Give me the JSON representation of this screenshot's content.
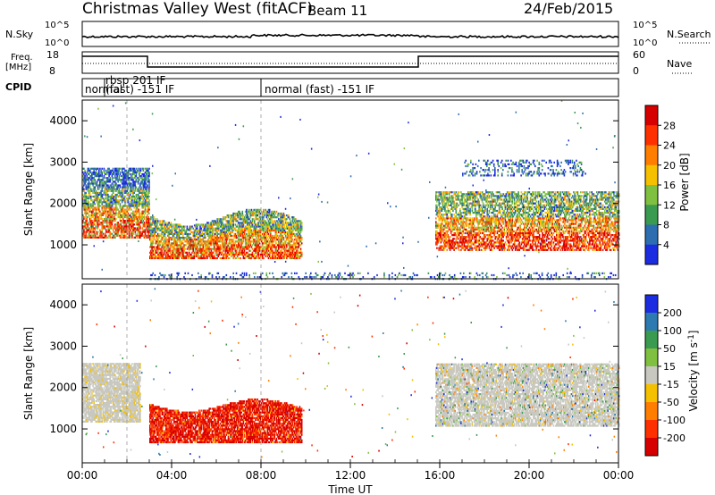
{
  "header": {
    "title": "Christmas Valley West (fitACF)",
    "beam": "Beam 11",
    "date": "24/Feb/2015"
  },
  "top_panels": {
    "nsky_label": "N.Sky",
    "nsearch_label": "N.Search",
    "nsky_ticks": [
      "10^5",
      "10^0"
    ],
    "nsky_right_ticks": [
      "10^5",
      "10^0"
    ],
    "freq_label_1": "Freq.",
    "freq_label_2": "[MHz]",
    "freq_ticks": [
      "18",
      "8"
    ],
    "nave_label": "Nave",
    "nave_ticks": [
      "60",
      "0"
    ],
    "cpid_label": "CPID",
    "cpid_segments": [
      {
        "label": "normal",
        "start_hour": 0.0
      },
      {
        "label": "rbsp 201 IF",
        "start_hour": 2.0
      },
      {
        "label": "(fast) -151 IF",
        "start_hour": 2.0
      },
      {
        "label": "normal (fast) -151 IF",
        "start_hour": 8.0
      }
    ]
  },
  "chart_data": [
    {
      "type": "heatmap",
      "title": "",
      "ylabel": "Slant Range [km]",
      "xlabel": "Time UT",
      "ylim": [
        180,
        4500
      ],
      "yticks": [
        "4000",
        "3000",
        "2000",
        "1000"
      ],
      "colorbar": {
        "label": "Power [dB]",
        "ticks": [
          "28",
          "24",
          "20",
          "16",
          "12",
          "8",
          "4"
        ],
        "colors": [
          "#d70000",
          "#ff3000",
          "#ff7e00",
          "#f5c000",
          "#80c040",
          "#3a9a50",
          "#2c6eb0",
          "#1c2ce0"
        ]
      }
    },
    {
      "type": "heatmap",
      "title": "",
      "ylabel": "Slant Range [km]",
      "xlabel": "Time UT",
      "ylim": [
        180,
        4500
      ],
      "yticks": [
        "4000",
        "3000",
        "2000",
        "1000"
      ],
      "colorbar": {
        "label": "Velocity [m s^-1]",
        "ticks": [
          "200",
          "100",
          "50",
          "15",
          "-15",
          "-50",
          "-100",
          "-200"
        ],
        "colors": [
          "#1c2ce0",
          "#2c7ab0",
          "#3a9a50",
          "#80c040",
          "#c8c8c0",
          "#f5c000",
          "#ff7e00",
          "#ff3000",
          "#d70000"
        ]
      }
    }
  ],
  "x_axis": {
    "label": "Time UT",
    "ticks": [
      "00:00",
      "04:00",
      "08:00",
      "12:00",
      "16:00",
      "20:00",
      "00:00"
    ]
  }
}
